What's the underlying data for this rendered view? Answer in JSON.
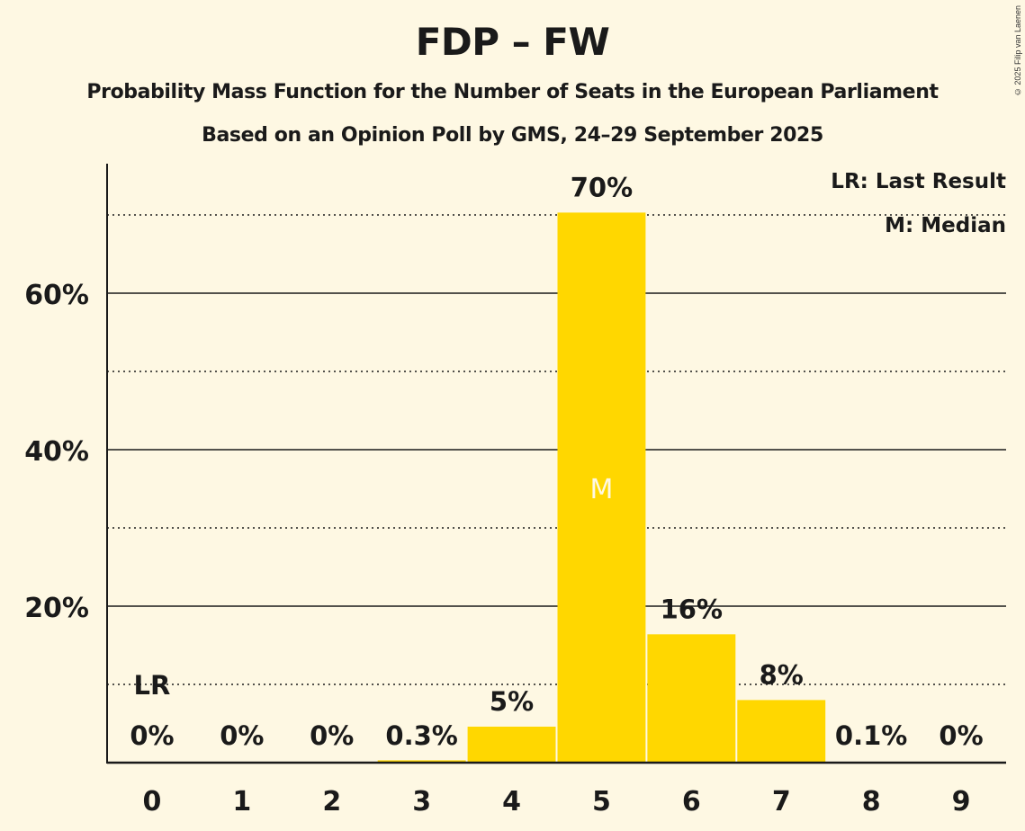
{
  "header": {
    "title": "FDP – FW",
    "subtitle": "Probability Mass Function for the Number of Seats in the European Parliament",
    "subtitle2": "Based on an Opinion Poll by GMS, 24–29 September 2025",
    "copyright": "© 2025 Filip van Laenen"
  },
  "colors": {
    "background": "#fef8e3",
    "bar": "#ffd700",
    "text": "#1a1a1a",
    "median_label": "#fef8e3"
  },
  "chart_data": {
    "type": "bar",
    "title": "FDP – FW",
    "xlabel": "",
    "ylabel": "",
    "categories": [
      "0",
      "1",
      "2",
      "3",
      "4",
      "5",
      "6",
      "7",
      "8",
      "9"
    ],
    "values": [
      0,
      0,
      0,
      0.3,
      4.6,
      70.3,
      16.4,
      8.0,
      0.1,
      0
    ],
    "data_labels": [
      "0%",
      "0%",
      "0%",
      "0.3%",
      "5%",
      "70%",
      "16%",
      "8%",
      "0.1%",
      "0%"
    ],
    "ylim": [
      0,
      76
    ],
    "major_ticks": [
      20,
      40,
      60
    ],
    "major_tick_labels": [
      "20%",
      "40%",
      "60%"
    ],
    "minor_gridlines": [
      10,
      30,
      50,
      70
    ],
    "grid": true,
    "last_result": {
      "category": "0",
      "label": "LR"
    },
    "median": {
      "category": "5",
      "label": "M"
    },
    "legend": {
      "position": "top-right",
      "entries": [
        "LR: Last Result",
        "M: Median"
      ]
    }
  }
}
